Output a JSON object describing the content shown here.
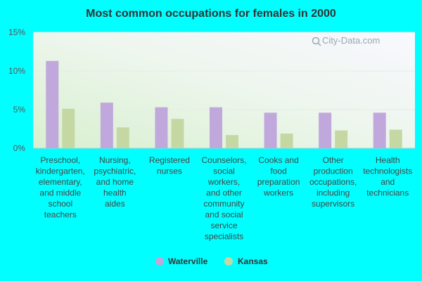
{
  "chart_data": {
    "type": "bar",
    "title": "Most common occupations for females in 2000",
    "xlabel": "",
    "ylabel": "",
    "ylim": [
      0,
      15
    ],
    "yticks": [
      "0%",
      "5%",
      "10%",
      "15%"
    ],
    "ytick_values": [
      0,
      5,
      10,
      15
    ],
    "categories": [
      "Preschool, kindergarten, elementary, and middle school teachers",
      "Nursing, psychiatric, and home health aides",
      "Registered nurses",
      "Counselors, social workers, and other community and social service specialists",
      "Cooks and food preparation workers",
      "Other production occupations, including supervisors",
      "Health technologists and technicians"
    ],
    "category_lines": [
      [
        "Preschool,",
        "kindergarten,",
        "elementary,",
        "and middle",
        "school",
        "teachers"
      ],
      [
        "Nursing,",
        "psychiatric,",
        "and home",
        "health",
        "aides"
      ],
      [
        "Registered",
        "nurses"
      ],
      [
        "Counselors,",
        "social",
        "workers,",
        "and other",
        "community",
        "and social",
        "service",
        "specialists"
      ],
      [
        "Cooks and",
        "food",
        "preparation",
        "workers"
      ],
      [
        "Other",
        "production",
        "occupations,",
        "including",
        "supervisors"
      ],
      [
        "Health",
        "technologists",
        "and",
        "technicians"
      ]
    ],
    "series": [
      {
        "name": "Waterville",
        "color": "#c0a8dc",
        "values": [
          11.3,
          5.9,
          5.3,
          5.3,
          4.6,
          4.6,
          4.6
        ]
      },
      {
        "name": "Kansas",
        "color": "#c5d8a4",
        "values": [
          5.1,
          2.7,
          3.8,
          1.7,
          1.9,
          2.3,
          2.4
        ]
      }
    ],
    "grid": true,
    "legend_position": "bottom-center"
  },
  "watermark": {
    "text": "City-Data.com",
    "icon": "magnifier-icon"
  }
}
